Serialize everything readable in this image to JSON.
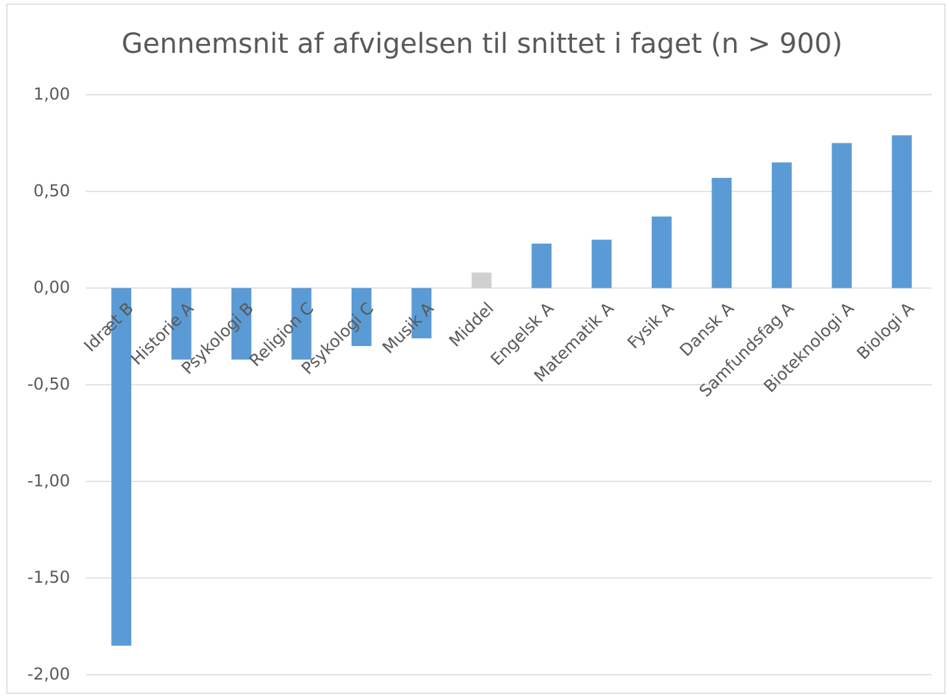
{
  "chart_data": {
    "type": "bar",
    "title": "Gennemsnit af afvigelsen til snittet i faget (n >  900)",
    "categories": [
      "Idræt B",
      "Historie A",
      "Psykologi B",
      "Religion C",
      "Psykologi C",
      "Musik A",
      "Middel",
      "Engelsk A",
      "Matematik A",
      "Fysik A",
      "Dansk A",
      "Samfundsfag A",
      "Bioteknologi A",
      "Biologi A"
    ],
    "values": [
      -1.85,
      -0.37,
      -0.37,
      -0.37,
      -0.3,
      -0.26,
      0.08,
      0.23,
      0.25,
      0.37,
      0.57,
      0.65,
      0.75,
      0.79
    ],
    "colors": [
      "#5b9bd5",
      "#5b9bd5",
      "#5b9bd5",
      "#5b9bd5",
      "#5b9bd5",
      "#5b9bd5",
      "#d0d0d0",
      "#5b9bd5",
      "#5b9bd5",
      "#5b9bd5",
      "#5b9bd5",
      "#5b9bd5",
      "#5b9bd5",
      "#5b9bd5"
    ],
    "ylim": [
      -2,
      1
    ],
    "yticks": [
      {
        "value": -2,
        "label": "-2,00"
      },
      {
        "value": -1.5,
        "label": "-1,50"
      },
      {
        "value": -1,
        "label": "-1,00"
      },
      {
        "value": -0.5,
        "label": "-0,50"
      },
      {
        "value": 0,
        "label": "0,00"
      },
      {
        "value": 0.5,
        "label": "0,50"
      },
      {
        "value": 1,
        "label": "1,00"
      }
    ],
    "grid": true
  }
}
